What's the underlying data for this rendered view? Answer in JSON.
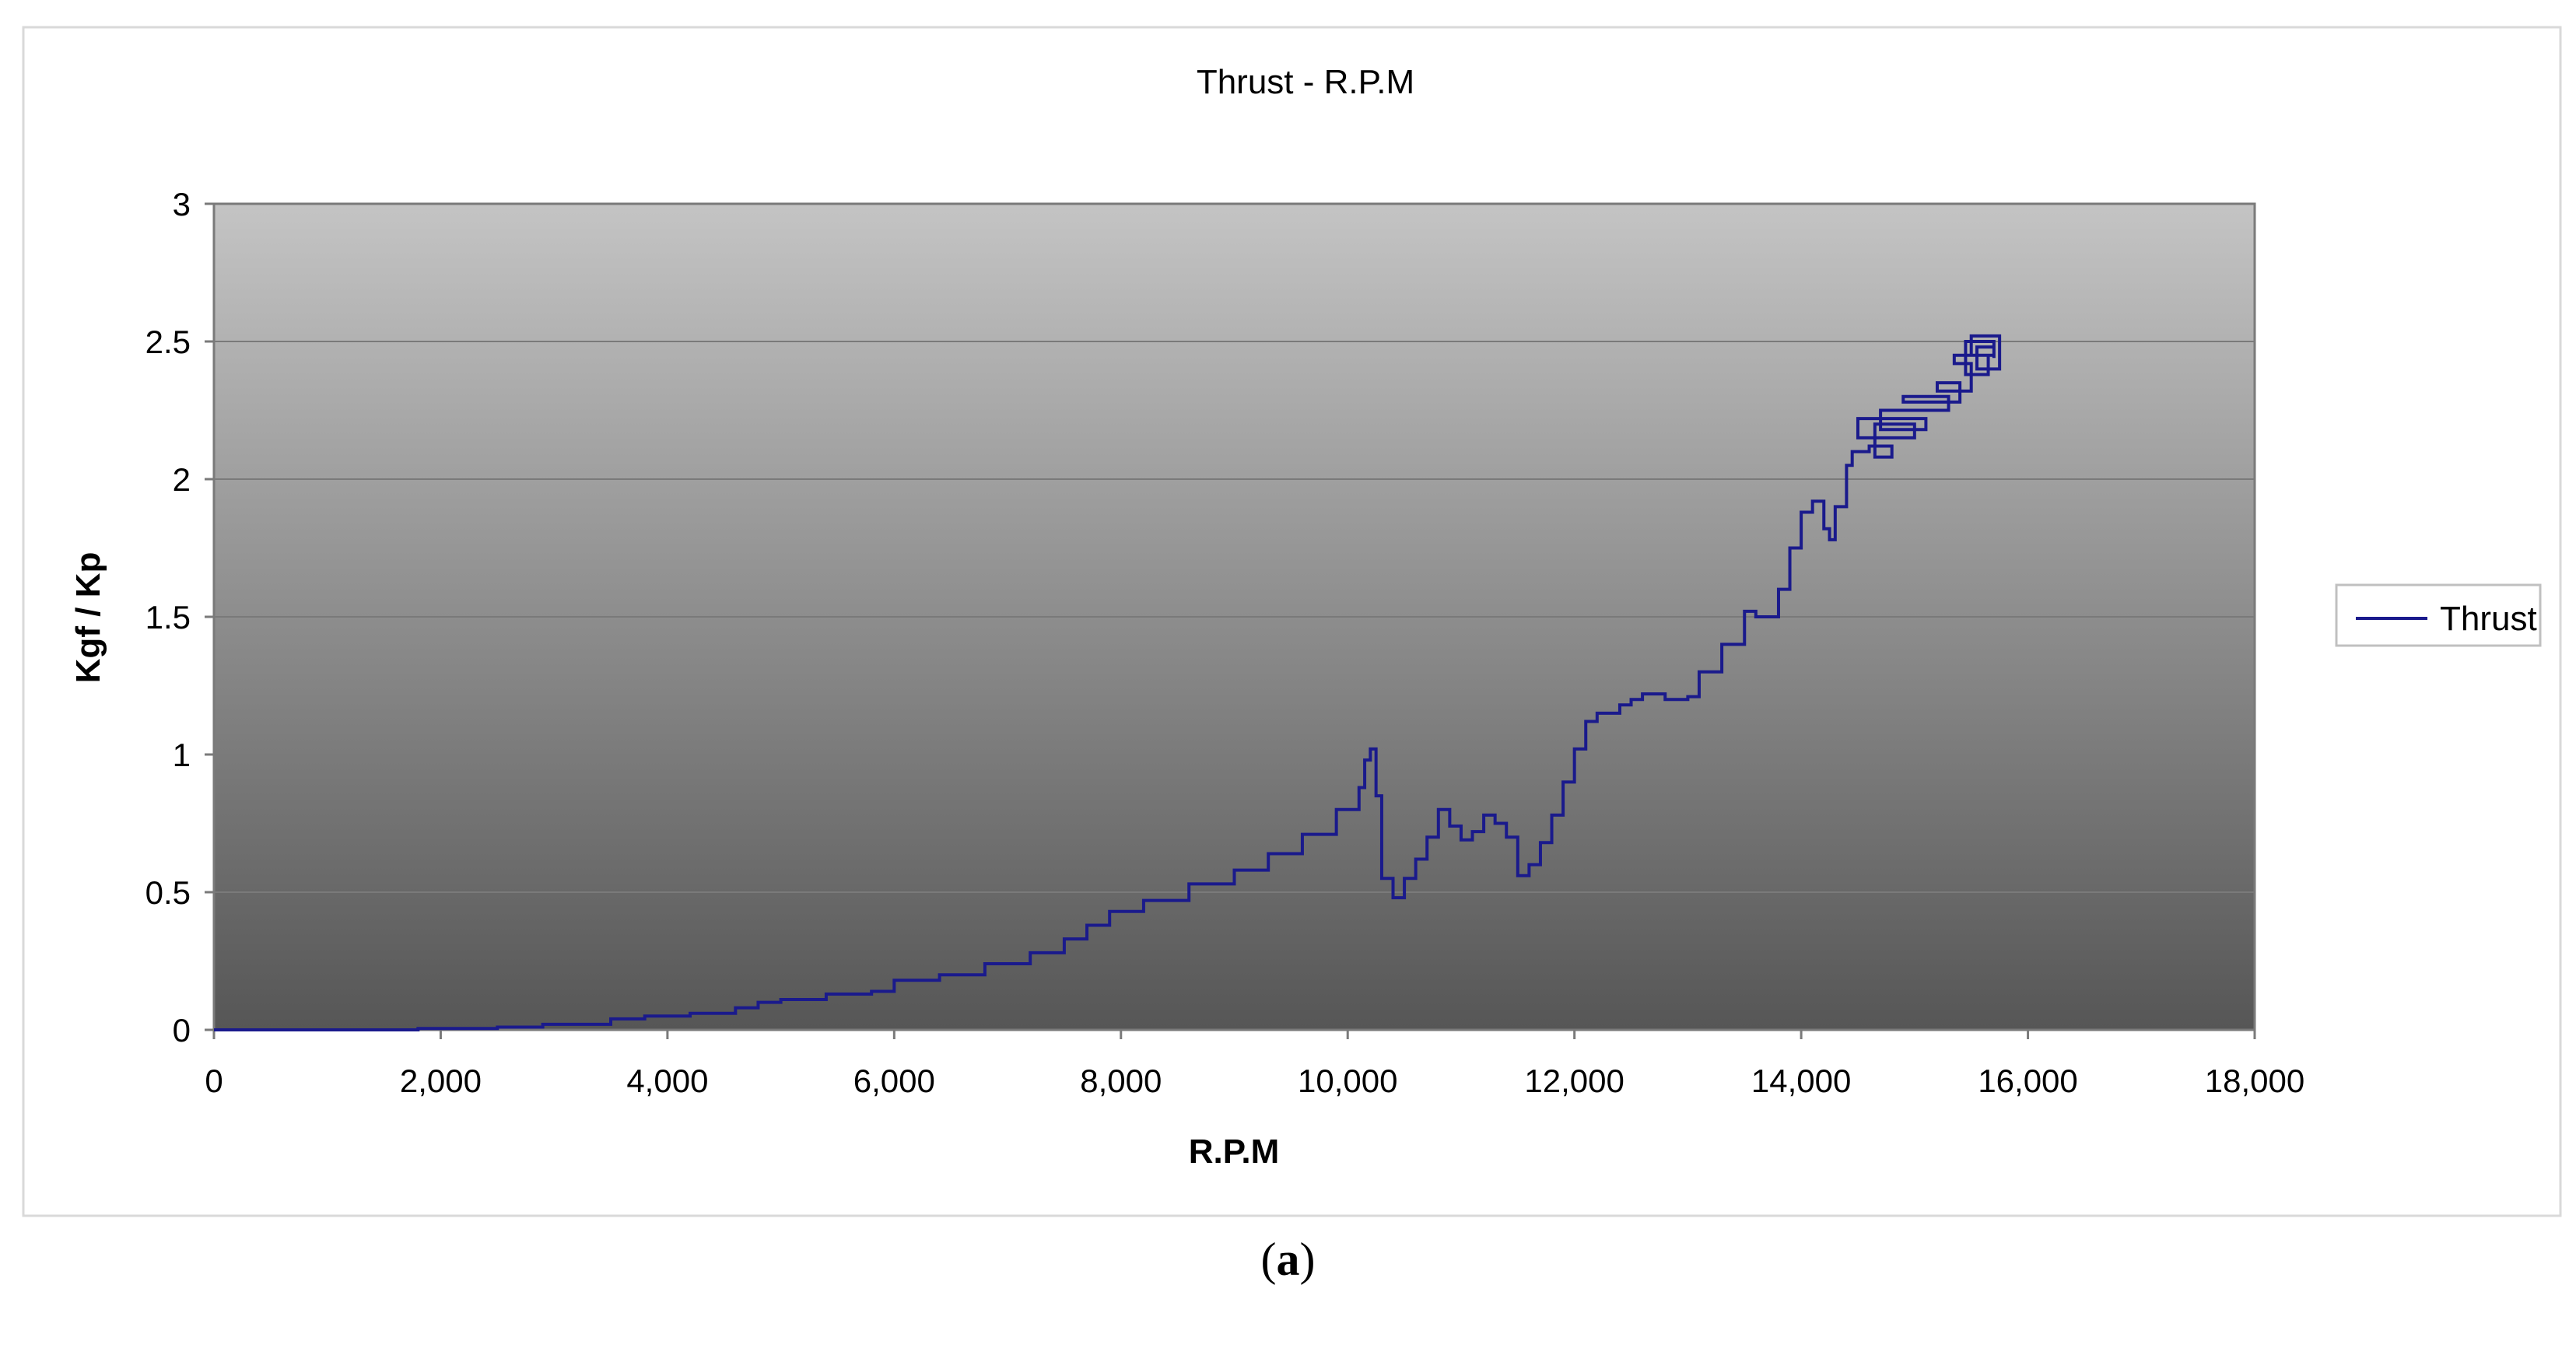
{
  "caption": {
    "open": "(",
    "letter": "a",
    "close": ")"
  },
  "chart_data": {
    "type": "line",
    "title": "Thrust - R.P.M",
    "xlabel": "R.P.M",
    "ylabel": "Kgf / Kp",
    "xlim": [
      0,
      18000
    ],
    "ylim": [
      0,
      3
    ],
    "x_ticks": [
      "0",
      "2,000",
      "4,000",
      "6,000",
      "8,000",
      "10,000",
      "12,000",
      "14,000",
      "16,000",
      "18,000"
    ],
    "y_ticks": [
      "0",
      "0.5",
      "1",
      "1.5",
      "2",
      "2.5",
      "3"
    ],
    "x_tick_values": [
      0,
      2000,
      4000,
      6000,
      8000,
      10000,
      12000,
      14000,
      16000,
      18000
    ],
    "y_tick_values": [
      0,
      0.5,
      1,
      1.5,
      2,
      2.5,
      3
    ],
    "grid": "horizontal",
    "plot_background": "gradient light gray to dark gray",
    "legend_position": "right",
    "colors": {
      "series": "#1a1a8c",
      "grid": "#7a7a7a",
      "plot_top": "#c4c4c4",
      "plot_bottom": "#565656"
    },
    "series": [
      {
        "name": "Thrust",
        "x": [
          0,
          1800,
          2500,
          2900,
          3200,
          3500,
          3800,
          4200,
          4600,
          4800,
          5000,
          5400,
          5800,
          6000,
          6400,
          6800,
          7200,
          7500,
          7700,
          7900,
          8200,
          8600,
          9000,
          9300,
          9600,
          9900,
          10100,
          10150,
          10200,
          10250,
          10300,
          10400,
          10500,
          10600,
          10700,
          10800,
          10900,
          11000,
          11100,
          11200,
          11300,
          11400,
          11500,
          11600,
          11700,
          11800,
          11900,
          12000,
          12100,
          12200,
          12400,
          12500,
          12600,
          12800,
          13000,
          13100,
          13300,
          13500,
          13600,
          13800,
          13900,
          14000,
          14100,
          14200,
          14250,
          14300,
          14400,
          14450,
          14600,
          14800,
          14650,
          15000,
          14500,
          15100,
          14700,
          15300,
          14900,
          15400,
          15200,
          15500,
          15350,
          15650,
          15450,
          15700,
          15500,
          15750,
          15550,
          15700
        ],
        "y": [
          0,
          0.005,
          0.01,
          0.02,
          0.02,
          0.04,
          0.05,
          0.06,
          0.08,
          0.1,
          0.11,
          0.13,
          0.14,
          0.18,
          0.2,
          0.24,
          0.28,
          0.33,
          0.38,
          0.43,
          0.47,
          0.53,
          0.58,
          0.64,
          0.71,
          0.8,
          0.88,
          0.98,
          1.02,
          0.85,
          0.55,
          0.48,
          0.55,
          0.62,
          0.7,
          0.8,
          0.74,
          0.69,
          0.72,
          0.78,
          0.75,
          0.7,
          0.56,
          0.6,
          0.68,
          0.78,
          0.9,
          1.02,
          1.12,
          1.15,
          1.18,
          1.2,
          1.22,
          1.2,
          1.21,
          1.3,
          1.4,
          1.52,
          1.5,
          1.6,
          1.75,
          1.88,
          1.92,
          1.82,
          1.78,
          1.9,
          2.05,
          2.1,
          2.12,
          2.08,
          2.2,
          2.15,
          2.22,
          2.18,
          2.25,
          2.3,
          2.28,
          2.35,
          2.32,
          2.42,
          2.45,
          2.38,
          2.5,
          2.45,
          2.52,
          2.4,
          2.48,
          2.44
        ]
      }
    ]
  }
}
